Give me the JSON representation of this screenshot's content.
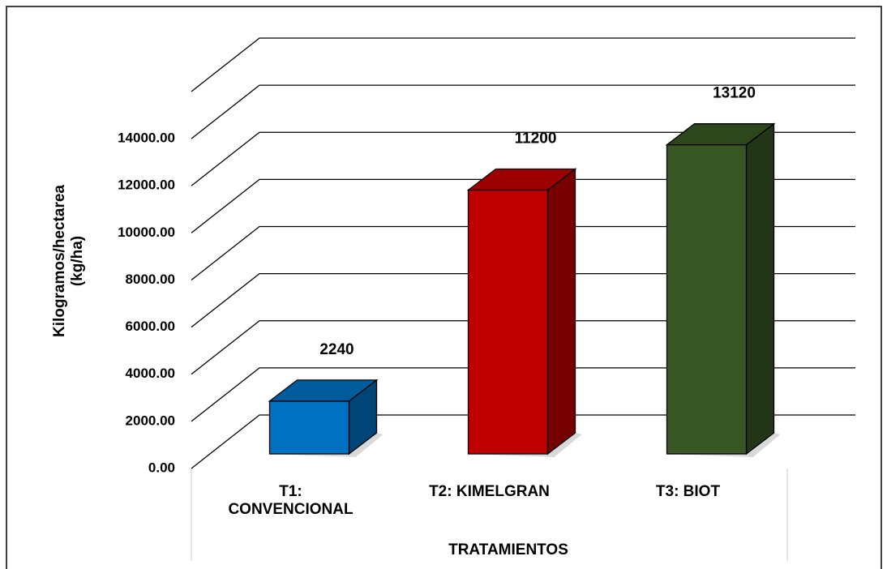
{
  "chart_data": {
    "type": "bar3d",
    "categories": [
      "T1: CONVENCIONAL",
      "T2: KIMELGRAN",
      "T3: BIOT"
    ],
    "values": [
      2240,
      11200,
      13120
    ],
    "colors": [
      "#0070c0",
      "#c00000",
      "#375623"
    ],
    "ylabel": "Kilogramos/hectarea (kg/ha)",
    "xlabel": "TRATAMIENTOS",
    "ylim": [
      0,
      16000
    ],
    "yticks": [
      {
        "value": 0,
        "label": "0.00"
      },
      {
        "value": 2000,
        "label": "2000.00"
      },
      {
        "value": 4000,
        "label": "4000.00"
      },
      {
        "value": 6000,
        "label": "6000.00"
      },
      {
        "value": 8000,
        "label": "8000.00"
      },
      {
        "value": 10000,
        "label": "10000.00"
      },
      {
        "value": 12000,
        "label": "12000.00"
      },
      {
        "value": 14000,
        "label": "14000.00"
      }
    ],
    "grid": true
  }
}
